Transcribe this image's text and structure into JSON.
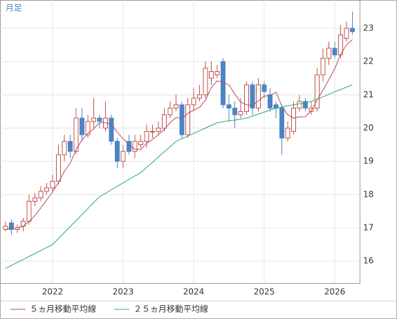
{
  "chart_data": {
    "type": "candlestick",
    "title": "月足",
    "categories": [
      null,
      null,
      null,
      null,
      null,
      null,
      null,
      null,
      "2022",
      null,
      null,
      null,
      null,
      null,
      null,
      null,
      null,
      null,
      null,
      null,
      "2023",
      null,
      null,
      null,
      null,
      null,
      null,
      null,
      null,
      null,
      null,
      null,
      "2024",
      null,
      null,
      null,
      null,
      null,
      null,
      null,
      null,
      null,
      null,
      null,
      "2025",
      null,
      null,
      null,
      null,
      null,
      null,
      null,
      null,
      null,
      null,
      null,
      "2026",
      null,
      null,
      null
    ],
    "open": [
      16.95,
      17.15,
      16.95,
      17.05,
      17.2,
      17.8,
      17.9,
      18.1,
      18.2,
      18.4,
      19.2,
      19.6,
      19.3,
      20.3,
      19.8,
      20.2,
      20.3,
      20.0,
      20.3,
      19.6,
      19.0,
      19.6,
      19.3,
      19.5,
      19.6,
      19.9,
      19.9,
      20.0,
      20.4,
      20.6,
      20.7,
      19.8,
      20.7,
      20.9,
      21.0,
      21.5,
      21.6,
      22.0,
      20.7,
      20.6,
      20.4,
      20.5,
      21.3,
      20.6,
      21.3,
      21.0,
      20.7,
      20.6,
      19.7,
      19.9,
      20.6,
      20.8,
      20.5,
      20.6,
      21.6,
      22.1,
      22.4,
      22.2,
      22.7,
      23.0
    ],
    "high": [
      17.2,
      17.25,
      17.1,
      17.3,
      18.0,
      18.05,
      18.25,
      18.35,
      18.6,
      19.5,
      19.8,
      19.8,
      20.6,
      20.6,
      20.4,
      20.9,
      20.4,
      20.8,
      20.4,
      19.7,
      19.5,
      19.8,
      19.8,
      19.8,
      20.1,
      20.1,
      20.2,
      20.6,
      20.8,
      21.0,
      20.8,
      20.9,
      21.2,
      21.3,
      22.0,
      22.0,
      21.9,
      22.1,
      21.0,
      20.8,
      20.9,
      21.4,
      21.4,
      21.5,
      21.4,
      21.2,
      20.8,
      20.7,
      20.2,
      20.8,
      21.0,
      20.9,
      20.8,
      21.8,
      22.4,
      22.6,
      22.6,
      23.1,
      23.2,
      23.5
    ],
    "low": [
      16.9,
      16.8,
      16.85,
      16.9,
      17.1,
      17.65,
      17.8,
      18.0,
      18.1,
      18.3,
      19.0,
      19.1,
      19.2,
      19.6,
      19.7,
      20.0,
      20.0,
      19.9,
      19.5,
      18.8,
      18.8,
      19.2,
      19.1,
      19.4,
      19.4,
      19.7,
      19.8,
      19.9,
      20.3,
      20.5,
      19.7,
      19.7,
      20.5,
      20.8,
      20.9,
      21.3,
      21.5,
      20.6,
      20.2,
      20.0,
      20.3,
      20.4,
      20.4,
      20.5,
      20.9,
      20.5,
      20.3,
      19.2,
      19.6,
      19.8,
      20.5,
      20.5,
      20.4,
      20.5,
      21.4,
      21.9,
      22.1,
      22.1,
      22.6,
      22.8
    ],
    "close": [
      17.05,
      16.95,
      17.0,
      17.2,
      17.8,
      17.9,
      18.1,
      18.2,
      18.4,
      19.2,
      19.6,
      19.3,
      20.3,
      19.8,
      20.2,
      20.3,
      20.2,
      20.3,
      19.6,
      19.0,
      19.3,
      19.3,
      19.6,
      19.6,
      19.9,
      19.9,
      20.0,
      20.4,
      20.6,
      20.7,
      19.8,
      20.7,
      20.9,
      21.0,
      21.8,
      21.7,
      21.7,
      20.7,
      20.6,
      20.4,
      20.5,
      21.3,
      20.6,
      21.3,
      21.1,
      20.6,
      20.6,
      19.7,
      20.0,
      20.6,
      20.8,
      20.6,
      20.6,
      21.6,
      22.1,
      22.4,
      22.2,
      22.8,
      23.0,
      22.9
    ],
    "up_color": "#c0504d",
    "down_color": "#4a86c5",
    "series": [
      {
        "name": "５ヵ月移動平均線",
        "color": "#b84a5a",
        "values": [
          16.95,
          17.0,
          17.0,
          17.05,
          17.19,
          17.37,
          17.6,
          17.84,
          18.08,
          18.36,
          18.7,
          18.94,
          19.36,
          19.64,
          19.84,
          19.98,
          20.16,
          20.16,
          20.12,
          19.88,
          19.68,
          19.5,
          19.36,
          19.36,
          19.54,
          19.66,
          19.8,
          19.96,
          20.16,
          20.32,
          20.28,
          20.44,
          20.54,
          20.62,
          20.84,
          21.22,
          21.42,
          21.38,
          21.3,
          21.02,
          20.78,
          20.7,
          20.68,
          20.82,
          20.96,
          20.98,
          21.08,
          20.66,
          20.4,
          20.3,
          20.34,
          20.34,
          20.52,
          20.84,
          21.14,
          21.46,
          21.78,
          22.22,
          22.5,
          22.66
        ]
      },
      {
        "name": "２５ヵ月移動平均線",
        "color": "#2aa86a",
        "values": [
          15.78,
          15.87,
          15.96,
          16.05,
          16.14,
          16.23,
          16.32,
          16.41,
          16.5,
          16.68,
          16.86,
          17.04,
          17.22,
          17.4,
          17.58,
          17.76,
          17.94,
          18.04,
          18.15,
          18.25,
          18.35,
          18.46,
          18.56,
          18.66,
          18.82,
          18.97,
          19.13,
          19.29,
          19.44,
          19.6,
          19.68,
          19.76,
          19.84,
          19.92,
          20.0,
          20.08,
          20.16,
          20.19,
          20.22,
          20.24,
          20.27,
          20.3,
          20.36,
          20.42,
          20.48,
          20.54,
          20.6,
          20.63,
          20.67,
          20.7,
          20.73,
          20.77,
          20.8,
          20.87,
          20.94,
          21.01,
          21.09,
          21.16,
          21.23,
          21.3
        ]
      }
    ],
    "ylim": [
      15.34,
      23.85
    ],
    "yticks": [
      16,
      17,
      18,
      19,
      20,
      21,
      22,
      23
    ],
    "grid": true
  }
}
